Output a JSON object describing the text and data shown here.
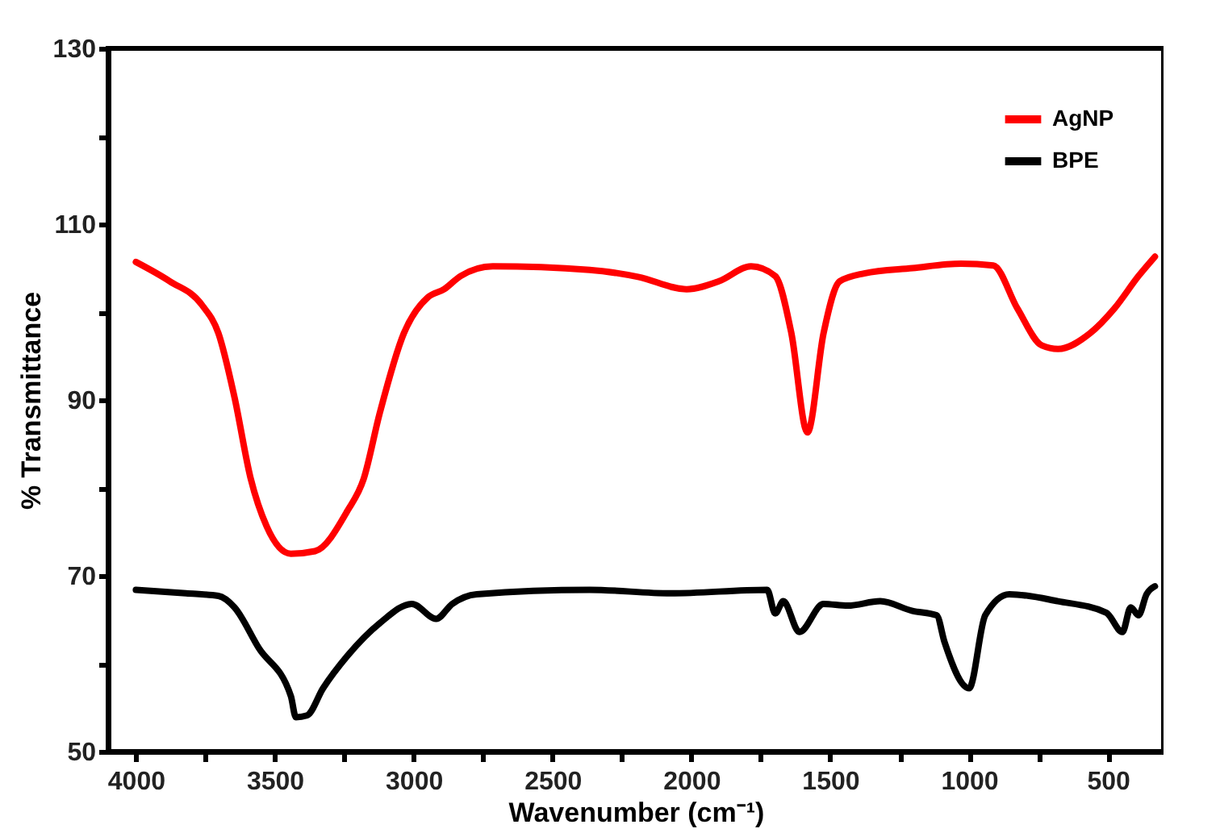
{
  "chart_data": {
    "type": "line",
    "xlabel": "Wavenumber (cm⁻¹)",
    "ylabel": "% Transmittance",
    "xlim": [
      4100,
      300
    ],
    "ylim": [
      50,
      130
    ],
    "xticks": [
      4000,
      {
        "value": 3750,
        "label": null
      },
      3500,
      {
        "value": 3250,
        "label": null
      },
      3000,
      {
        "value": 2750,
        "label": null
      },
      2500,
      {
        "value": 2250,
        "label": null
      },
      2000,
      {
        "value": 1750,
        "label": null
      },
      1500,
      {
        "value": 1250,
        "label": null
      },
      1000,
      {
        "value": 750,
        "label": null
      },
      500
    ],
    "yticks": [
      50,
      {
        "value": 60,
        "label": null
      },
      70,
      {
        "value": 80,
        "label": null
      },
      90,
      {
        "value": 100,
        "label": null
      },
      110,
      {
        "value": 120,
        "label": null
      },
      130
    ],
    "grid": false,
    "legend": "top right",
    "marker": "none",
    "line_style": "solid",
    "series": [
      {
        "name": "AgNP",
        "color": "#ff0000",
        "x": [
          4000,
          3878,
          3762,
          3703,
          3645,
          3587,
          3529,
          3442,
          3355,
          3238,
          3180,
          3122,
          3035,
          2948,
          2890,
          2831,
          2715,
          2366,
          2192,
          2017,
          1901,
          1785,
          1698,
          1640,
          1582,
          1524,
          1466,
          1378,
          1204,
          1029,
          913,
          826,
          738,
          680,
          564,
          477,
          390,
          331
        ],
        "values": [
          105.7,
          103.5,
          100.8,
          97.6,
          90.3,
          81.1,
          75.6,
          72.5,
          72.8,
          77.4,
          81,
          88.5,
          97.6,
          101.7,
          102.6,
          104.1,
          105.2,
          104.8,
          104,
          102.6,
          103.5,
          105.2,
          104.1,
          97.6,
          86.3,
          97.6,
          103.5,
          104.4,
          105,
          105.5,
          105.3,
          100.4,
          96.2,
          95.8,
          97.6,
          100.4,
          104.1,
          106.3
        ]
      },
      {
        "name": "BPE",
        "color": "#000000",
        "x": [
          4000,
          3820,
          3703,
          3645,
          3558,
          3442,
          3424,
          3384,
          3326,
          3238,
          3122,
          3006,
          2919,
          2861,
          2773,
          2366,
          2075,
          1727,
          1698,
          1669,
          1611,
          1524,
          1437,
          1320,
          1204,
          1117,
          1088,
          1000,
          942,
          855,
          680,
          506,
          448,
          418,
          390,
          361,
          331
        ],
        "values": [
          68.4,
          68,
          67.7,
          66.4,
          61.8,
          56.3,
          53.9,
          54.1,
          57.2,
          60.9,
          64.6,
          66.8,
          65.1,
          66.8,
          67.9,
          68.4,
          68,
          68.4,
          65.7,
          67.1,
          63.6,
          66.8,
          66.6,
          67.1,
          66,
          65.5,
          62.4,
          57.2,
          65.5,
          67.9,
          67.1,
          65.8,
          63.6,
          66.4,
          65.5,
          67.9,
          68.8
        ]
      }
    ]
  }
}
